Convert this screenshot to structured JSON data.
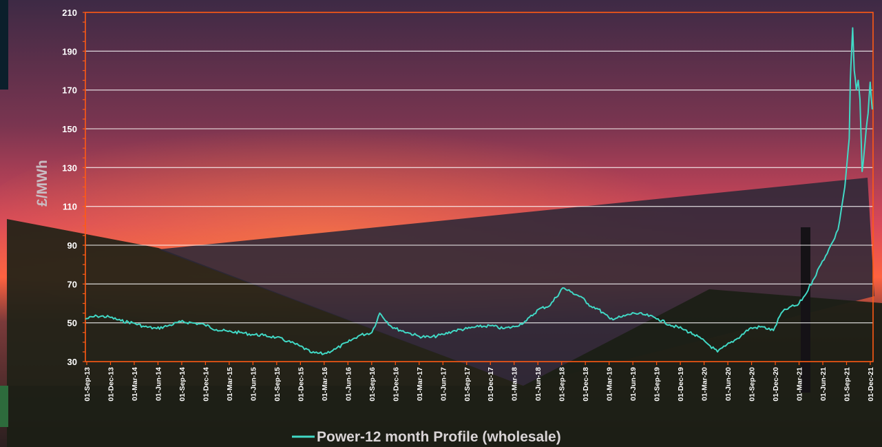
{
  "colors": {
    "series": "#41d9c6",
    "axis": "#ff5a14",
    "grid": "#ffffff"
  },
  "chart_data": {
    "type": "line",
    "title": "",
    "xlabel": "",
    "ylabel": "£/MWh",
    "ylim": [
      30,
      210
    ],
    "yticks": [
      30,
      50,
      70,
      90,
      110,
      130,
      150,
      170,
      190,
      210
    ],
    "xlim": [
      "2013-09-01",
      "2021-12-01"
    ],
    "grid": true,
    "legend_position": "bottom-center",
    "x_tick_labels": [
      "01-Sep-13",
      "01-Dec-13",
      "01-Mar-14",
      "01-Jun-14",
      "01-Sep-14",
      "01-Dec-14",
      "01-Mar-15",
      "01-Jun-15",
      "01-Sep-15",
      "01-Dec-15",
      "01-Mar-16",
      "01-Jun-16",
      "01-Sep-16",
      "01-Dec-16",
      "01-Mar-17",
      "01-Jun-17",
      "01-Sep-17",
      "01-Dec-17",
      "01-Mar-18",
      "01-Jun-18",
      "01-Sep-18",
      "01-Dec-18",
      "01-Mar-19",
      "01-Jun-19",
      "01-Sep-19",
      "01-Dec-19",
      "01-Mar-20",
      "01-Jun-20",
      "01-Sep-20",
      "01-Dec-20",
      "01-Mar-21",
      "01-Jun-21",
      "01-Sep-21",
      "01-Dec-21"
    ],
    "series": [
      {
        "name": "Power-12 month Profile (wholesale)",
        "x": [
          "2013-09-01",
          "2013-10-15",
          "2013-12-01",
          "2014-01-15",
          "2014-03-01",
          "2014-04-15",
          "2014-06-01",
          "2014-07-15",
          "2014-09-01",
          "2014-10-15",
          "2014-12-01",
          "2015-01-15",
          "2015-03-01",
          "2015-04-15",
          "2015-06-01",
          "2015-07-15",
          "2015-09-01",
          "2015-10-15",
          "2015-12-01",
          "2016-01-15",
          "2016-03-01",
          "2016-04-15",
          "2016-06-01",
          "2016-07-15",
          "2016-09-01",
          "2016-10-01",
          "2016-11-15",
          "2016-12-01",
          "2017-01-15",
          "2017-03-01",
          "2017-04-15",
          "2017-06-01",
          "2017-07-15",
          "2017-09-01",
          "2017-10-15",
          "2017-12-01",
          "2018-01-15",
          "2018-03-01",
          "2018-04-15",
          "2018-06-01",
          "2018-07-15",
          "2018-09-01",
          "2018-10-01",
          "2018-11-15",
          "2018-12-01",
          "2019-01-15",
          "2019-03-01",
          "2019-04-15",
          "2019-06-01",
          "2019-07-15",
          "2019-09-01",
          "2019-10-15",
          "2019-12-01",
          "2020-01-15",
          "2020-03-01",
          "2020-04-15",
          "2020-05-15",
          "2020-07-01",
          "2020-08-15",
          "2020-10-01",
          "2020-11-15",
          "2020-12-15",
          "2021-01-15",
          "2021-02-15",
          "2021-03-15",
          "2021-04-15",
          "2021-05-15",
          "2021-06-15",
          "2021-07-01",
          "2021-07-20",
          "2021-08-01",
          "2021-08-15",
          "2021-08-25",
          "2021-09-01",
          "2021-09-05",
          "2021-09-10",
          "2021-09-14",
          "2021-09-20",
          "2021-09-28",
          "2021-10-05",
          "2021-10-12",
          "2021-10-20",
          "2021-10-28",
          "2021-11-05",
          "2021-11-12",
          "2021-11-20",
          "2021-11-28"
        ],
        "values": [
          52,
          53.5,
          53,
          51,
          50,
          48,
          47,
          48.5,
          50.5,
          50,
          49,
          46.5,
          45.5,
          45,
          44,
          43.5,
          42.5,
          40.5,
          38,
          34.5,
          34,
          36.5,
          40,
          43.5,
          45,
          55,
          48,
          47,
          45,
          43,
          42.5,
          44,
          46,
          47,
          48,
          48.5,
          47,
          48,
          51,
          57,
          59,
          68,
          66,
          63,
          60,
          57,
          52,
          53,
          55,
          54,
          52,
          49,
          47,
          44,
          40,
          35,
          38,
          42,
          47,
          48,
          46,
          55,
          58,
          59,
          64,
          72,
          80,
          88,
          92,
          98,
          108,
          120,
          135,
          145,
          175,
          190,
          202,
          180,
          170,
          175,
          165,
          128,
          138,
          150,
          158,
          174,
          160
        ]
      }
    ]
  }
}
